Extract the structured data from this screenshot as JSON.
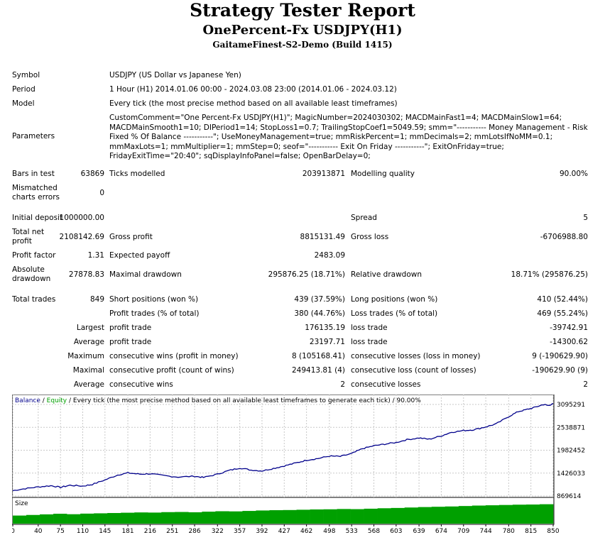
{
  "header": {
    "title": "Strategy Tester Report",
    "subtitle": "OnePercent-Fx USDJPY(H1)",
    "server": "GaitameFinest-S2-Demo (Build 1415)"
  },
  "info": {
    "symbol_label": "Symbol",
    "symbol_value": "USDJPY (US Dollar vs Japanese Yen)",
    "period_label": "Period",
    "period_value": "1 Hour (H1) 2014.01.06 00:00 - 2024.03.08 23:00 (2014.01.06 - 2024.03.12)",
    "model_label": "Model",
    "model_value": "Every tick (the most precise method based on all available least timeframes)",
    "parameters_label": "Parameters",
    "parameters_value": "CustomComment=\"One Percent-Fx USDJPY(H1)\"; MagicNumber=2024030302; MACDMainFast1=4; MACDMainSlow1=64; MACDMainSmooth1=10; DIPeriod1=14; StopLoss1=0.7; TrailingStopCoef1=5049.59; smm=\"----------- Money Management - Risk Fixed % Of Balance -----------\"; UseMoneyManagement=true; mmRiskPercent=1; mmDecimals=2; mmLotsIfNoMM=0.1; mmMaxLots=1; mmMultiplier=1; mmStep=0; seof=\"----------- Exit On Friday -----------\"; ExitOnFriday=true; FridayExitTime=\"20:40\"; sqDisplayInfoPanel=false; OpenBarDelay=0;"
  },
  "stats": {
    "bars_label": "Bars in test",
    "bars_value": "63869",
    "ticks_label": "Ticks modelled",
    "ticks_value": "203913871",
    "quality_label": "Modelling quality",
    "quality_value": "90.00%",
    "mismatch_label_1": "Mismatched",
    "mismatch_label_2": "charts errors",
    "mismatch_value": "0",
    "deposit_label": "Initial deposit",
    "deposit_value": "1000000.00",
    "spread_label": "Spread",
    "spread_value": "5",
    "net_label_1": "Total net",
    "net_label_2": "profit",
    "net_value": "2108142.69",
    "gross_profit_label": "Gross profit",
    "gross_profit_value": "8815131.49",
    "gross_loss_label": "Gross loss",
    "gross_loss_value": "-6706988.80",
    "pf_label": "Profit factor",
    "pf_value": "1.31",
    "payoff_label": "Expected payoff",
    "payoff_value": "2483.09",
    "abs_dd_label_1": "Absolute",
    "abs_dd_label_2": "drawdown",
    "abs_dd_value": "27878.83",
    "max_dd_label": "Maximal drawdown",
    "max_dd_value": "295876.25 (18.71%)",
    "rel_dd_label": "Relative drawdown",
    "rel_dd_value": "18.71% (295876.25)",
    "trades_label": "Total trades",
    "trades_value": "849",
    "short_label": "Short positions (won %)",
    "short_value": "439 (37.59%)",
    "long_label": "Long positions (won %)",
    "long_value": "410 (52.44%)",
    "ptrades_label": "Profit trades (% of total)",
    "ptrades_value": "380 (44.76%)",
    "ltrades_label": "Loss trades (% of total)",
    "ltrades_value": "469 (55.24%)",
    "largest_label": "Largest",
    "largest_profit_label": "profit trade",
    "largest_profit_value": "176135.19",
    "largest_loss_label": "loss trade",
    "largest_loss_value": "-39742.91",
    "average_label": "Average",
    "average_profit_label": "profit trade",
    "average_profit_value": "23197.71",
    "average_loss_label": "loss trade",
    "average_loss_value": "-14300.62",
    "maximum_label": "Maximum",
    "max_wins_label": "consecutive wins (profit in money)",
    "max_wins_value": "8 (105168.41)",
    "max_losses_label": "consecutive losses (loss in money)",
    "max_losses_value": "9 (-190629.90)",
    "maximal_label": "Maximal",
    "maximal_profit_label": "consecutive profit (count of wins)",
    "maximal_profit_value": "249413.81 (4)",
    "maximal_loss_label": "consecutive loss (count of losses)",
    "maximal_loss_value": "-190629.90 (9)",
    "avg2_label": "Average",
    "avg_wins_label": "consecutive wins",
    "avg_wins_value": "2",
    "avg_losses_label": "consecutive losses",
    "avg_losses_value": "2"
  },
  "chart_data": {
    "type": "line",
    "legend_balance": "Balance",
    "legend_sep": " / ",
    "legend_equity": "Equity",
    "legend_rest": " / Every tick (the most precise method based on all available least timeframes to generate each tick) / 90.00%",
    "size_label": "Size",
    "y_ticks": [
      "3095291",
      "2538871",
      "1982452",
      "1426033",
      "869614"
    ],
    "y_values": [
      3095291,
      2538871,
      1982452,
      1426033,
      869614
    ],
    "x_ticks": [
      "0",
      "40",
      "75",
      "110",
      "145",
      "181",
      "216",
      "251",
      "286",
      "322",
      "357",
      "392",
      "427",
      "462",
      "498",
      "533",
      "568",
      "603",
      "639",
      "674",
      "709",
      "744",
      "780",
      "815",
      "850"
    ],
    "x_range": [
      0,
      850
    ],
    "y_range": [
      869614,
      3095291
    ],
    "balance": [
      [
        0,
        1000000
      ],
      [
        20,
        1050000
      ],
      [
        40,
        1090000
      ],
      [
        60,
        1120000
      ],
      [
        75,
        1080000
      ],
      [
        90,
        1130000
      ],
      [
        110,
        1110000
      ],
      [
        125,
        1150000
      ],
      [
        145,
        1260000
      ],
      [
        165,
        1380000
      ],
      [
        181,
        1430000
      ],
      [
        200,
        1400000
      ],
      [
        216,
        1410000
      ],
      [
        240,
        1360000
      ],
      [
        260,
        1330000
      ],
      [
        286,
        1350000
      ],
      [
        300,
        1320000
      ],
      [
        322,
        1400000
      ],
      [
        340,
        1490000
      ],
      [
        357,
        1550000
      ],
      [
        375,
        1500000
      ],
      [
        392,
        1480000
      ],
      [
        410,
        1540000
      ],
      [
        427,
        1600000
      ],
      [
        445,
        1670000
      ],
      [
        462,
        1740000
      ],
      [
        480,
        1780000
      ],
      [
        498,
        1840000
      ],
      [
        515,
        1830000
      ],
      [
        533,
        1900000
      ],
      [
        550,
        2020000
      ],
      [
        568,
        2090000
      ],
      [
        585,
        2130000
      ],
      [
        603,
        2170000
      ],
      [
        620,
        2240000
      ],
      [
        639,
        2280000
      ],
      [
        655,
        2250000
      ],
      [
        674,
        2330000
      ],
      [
        690,
        2420000
      ],
      [
        709,
        2460000
      ],
      [
        725,
        2480000
      ],
      [
        744,
        2550000
      ],
      [
        760,
        2620000
      ],
      [
        780,
        2800000
      ],
      [
        795,
        2920000
      ],
      [
        808,
        2970000
      ],
      [
        820,
        3020000
      ],
      [
        835,
        3095291
      ],
      [
        842,
        3070000
      ],
      [
        850,
        3110000
      ]
    ],
    "size_values": [
      0.21,
      0.25,
      0.29,
      0.33,
      0.3,
      0.34,
      0.36,
      0.38,
      0.4,
      0.42,
      0.41,
      0.44,
      0.45,
      0.43,
      0.47,
      0.5,
      0.49,
      0.52,
      0.55,
      0.57,
      0.58,
      0.6,
      0.62,
      0.63,
      0.65,
      0.64,
      0.67,
      0.7,
      0.72,
      0.75,
      0.78,
      0.8,
      0.82,
      0.85,
      0.88,
      0.9,
      0.92,
      0.94,
      0.95,
      0.97
    ]
  }
}
